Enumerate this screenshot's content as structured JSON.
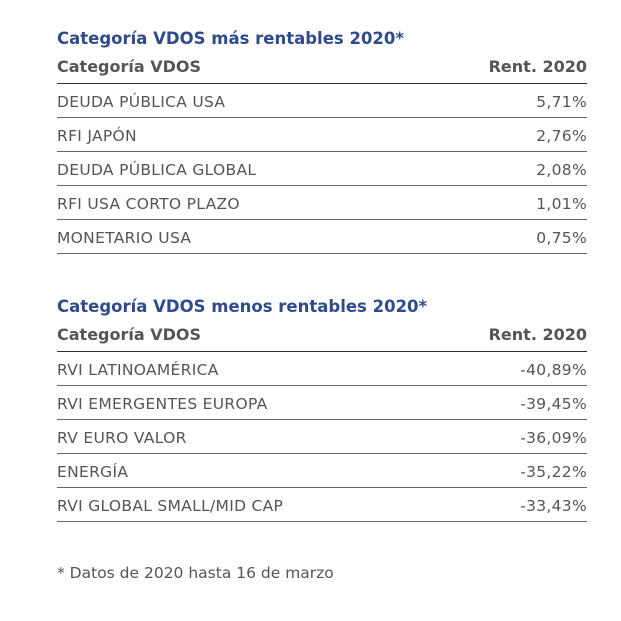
{
  "tables": [
    {
      "title": "Categoría VDOS más rentables 2020*",
      "header": [
        "Categoría VDOS",
        "Rent. 2020"
      ],
      "rows": [
        [
          "DEUDA PÚBLICA USA",
          "5,71%"
        ],
        [
          "RFI JAPÓN",
          "2,76%"
        ],
        [
          "DEUDA PÚBLICA GLOBAL",
          "2,08%"
        ],
        [
          "RFI USA CORTO PLAZO",
          "1,01%"
        ],
        [
          "MONETARIO USA",
          "0,75%"
        ]
      ]
    },
    {
      "title": "Categoría VDOS menos rentables 2020*",
      "header": [
        "Categoría VDOS",
        "Rent. 2020"
      ],
      "rows": [
        [
          "RVI LATINOAMÉRICA",
          "-40,89%"
        ],
        [
          "RVI EMERGENTES EUROPA",
          "-39,45%"
        ],
        [
          "RV EURO VALOR",
          "-36,09%"
        ],
        [
          "ENERGÍA",
          "-35,22%"
        ],
        [
          "RVI GLOBAL SMALL/MID CAP",
          "-33,43%"
        ]
      ]
    }
  ],
  "footnote": "* Datos de 2020 hasta 16 de marzo"
}
